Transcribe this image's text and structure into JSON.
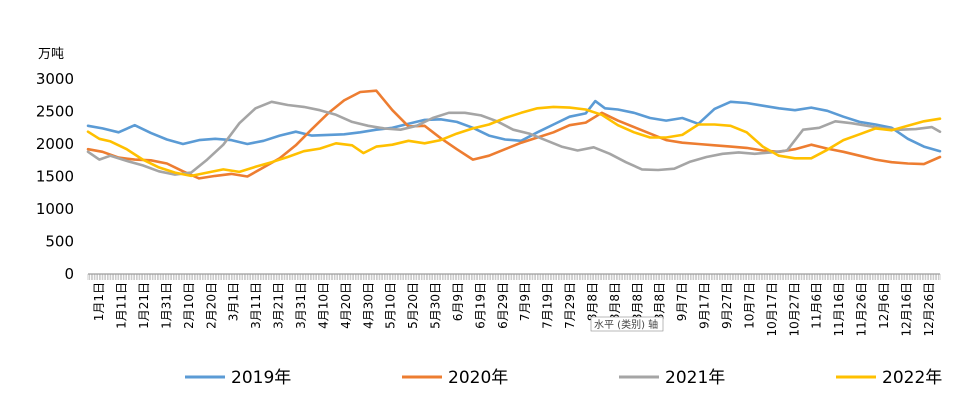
{
  "chart_data": {
    "type": "line",
    "title": "",
    "unit_label": "万吨",
    "xlabel": "",
    "ylabel": "",
    "ylim": [
      0,
      3000
    ],
    "yticks": [
      0,
      500,
      1000,
      1500,
      2000,
      2500,
      3000
    ],
    "grid": "none",
    "legend_position": "bottom",
    "axis_tooltip": "水平 (类别) 轴",
    "x_tick_labels": [
      "1月1日",
      "1月11日",
      "1月21日",
      "1月31日",
      "2月10日",
      "2月20日",
      "3月1日",
      "3月11日",
      "3月21日",
      "3月31日",
      "4月10日",
      "4月20日",
      "4月30日",
      "5月10日",
      "5月20日",
      "5月30日",
      "6月9日",
      "6月19日",
      "6月29日",
      "7月9日",
      "7月19日",
      "7月29日",
      "8月8日",
      "8月8日",
      "8月8日",
      "8月8日",
      "9月7日",
      "9月17日",
      "9月27日",
      "10月7日",
      "10月17日",
      "10月27日",
      "11月6日",
      "11月16日",
      "11月26日",
      "12月6日",
      "12月16日",
      "12月26日"
    ],
    "series": [
      {
        "name": "2019年",
        "color": "#5B9BD5",
        "points": [
          [
            1,
            2280
          ],
          [
            10,
            2240
          ],
          [
            20,
            2180
          ],
          [
            30,
            2290
          ],
          [
            40,
            2170
          ],
          [
            50,
            2070
          ],
          [
            60,
            2000
          ],
          [
            70,
            2060
          ],
          [
            80,
            2080
          ],
          [
            90,
            2060
          ],
          [
            100,
            2000
          ],
          [
            110,
            2050
          ],
          [
            120,
            2130
          ],
          [
            130,
            2190
          ],
          [
            140,
            2130
          ],
          [
            150,
            2140
          ],
          [
            160,
            2150
          ],
          [
            170,
            2180
          ],
          [
            180,
            2220
          ],
          [
            190,
            2250
          ],
          [
            200,
            2310
          ],
          [
            210,
            2370
          ],
          [
            220,
            2380
          ],
          [
            230,
            2340
          ],
          [
            240,
            2250
          ],
          [
            250,
            2130
          ],
          [
            260,
            2070
          ],
          [
            270,
            2050
          ],
          [
            280,
            2180
          ],
          [
            290,
            2300
          ],
          [
            300,
            2420
          ],
          [
            310,
            2470
          ],
          [
            316,
            2660
          ],
          [
            322,
            2550
          ],
          [
            330,
            2530
          ],
          [
            340,
            2480
          ],
          [
            350,
            2400
          ],
          [
            360,
            2360
          ],
          [
            370,
            2400
          ],
          [
            380,
            2310
          ],
          [
            390,
            2540
          ],
          [
            400,
            2650
          ],
          [
            410,
            2630
          ],
          [
            420,
            2590
          ],
          [
            430,
            2550
          ],
          [
            440,
            2520
          ],
          [
            450,
            2560
          ],
          [
            460,
            2510
          ],
          [
            470,
            2420
          ],
          [
            480,
            2340
          ],
          [
            490,
            2300
          ],
          [
            500,
            2250
          ],
          [
            510,
            2080
          ],
          [
            520,
            1960
          ],
          [
            530,
            1890
          ]
        ]
      },
      {
        "name": "2020年",
        "color": "#ED7D31",
        "points": [
          [
            1,
            1920
          ],
          [
            10,
            1880
          ],
          [
            20,
            1790
          ],
          [
            30,
            1760
          ],
          [
            40,
            1750
          ],
          [
            50,
            1700
          ],
          [
            60,
            1580
          ],
          [
            70,
            1470
          ],
          [
            80,
            1510
          ],
          [
            90,
            1540
          ],
          [
            100,
            1500
          ],
          [
            110,
            1640
          ],
          [
            120,
            1780
          ],
          [
            130,
            1980
          ],
          [
            140,
            2230
          ],
          [
            150,
            2470
          ],
          [
            160,
            2670
          ],
          [
            170,
            2800
          ],
          [
            180,
            2820
          ],
          [
            190,
            2520
          ],
          [
            200,
            2270
          ],
          [
            210,
            2280
          ],
          [
            220,
            2090
          ],
          [
            230,
            1920
          ],
          [
            240,
            1760
          ],
          [
            250,
            1820
          ],
          [
            260,
            1920
          ],
          [
            270,
            2020
          ],
          [
            280,
            2100
          ],
          [
            290,
            2180
          ],
          [
            300,
            2290
          ],
          [
            310,
            2330
          ],
          [
            320,
            2480
          ],
          [
            330,
            2360
          ],
          [
            340,
            2260
          ],
          [
            350,
            2160
          ],
          [
            360,
            2060
          ],
          [
            370,
            2020
          ],
          [
            380,
            2000
          ],
          [
            390,
            1980
          ],
          [
            400,
            1960
          ],
          [
            410,
            1940
          ],
          [
            420,
            1900
          ],
          [
            430,
            1880
          ],
          [
            440,
            1920
          ],
          [
            450,
            1990
          ],
          [
            460,
            1930
          ],
          [
            470,
            1880
          ],
          [
            480,
            1820
          ],
          [
            490,
            1760
          ],
          [
            500,
            1720
          ],
          [
            510,
            1700
          ],
          [
            520,
            1690
          ],
          [
            530,
            1800
          ]
        ]
      },
      {
        "name": "2021年",
        "color": "#A5A5A5",
        "points": [
          [
            1,
            1880
          ],
          [
            8,
            1760
          ],
          [
            15,
            1820
          ],
          [
            25,
            1740
          ],
          [
            35,
            1670
          ],
          [
            45,
            1580
          ],
          [
            55,
            1530
          ],
          [
            65,
            1560
          ],
          [
            75,
            1760
          ],
          [
            85,
            1990
          ],
          [
            95,
            2320
          ],
          [
            105,
            2550
          ],
          [
            115,
            2650
          ],
          [
            125,
            2600
          ],
          [
            135,
            2570
          ],
          [
            145,
            2520
          ],
          [
            155,
            2450
          ],
          [
            165,
            2340
          ],
          [
            175,
            2280
          ],
          [
            185,
            2240
          ],
          [
            195,
            2220
          ],
          [
            205,
            2280
          ],
          [
            215,
            2400
          ],
          [
            225,
            2480
          ],
          [
            235,
            2480
          ],
          [
            245,
            2440
          ],
          [
            255,
            2350
          ],
          [
            265,
            2220
          ],
          [
            275,
            2160
          ],
          [
            285,
            2060
          ],
          [
            295,
            1960
          ],
          [
            305,
            1900
          ],
          [
            315,
            1950
          ],
          [
            325,
            1850
          ],
          [
            335,
            1720
          ],
          [
            345,
            1610
          ],
          [
            355,
            1600
          ],
          [
            365,
            1620
          ],
          [
            375,
            1730
          ],
          [
            385,
            1800
          ],
          [
            395,
            1850
          ],
          [
            405,
            1870
          ],
          [
            415,
            1850
          ],
          [
            425,
            1870
          ],
          [
            435,
            1900
          ],
          [
            445,
            2220
          ],
          [
            455,
            2250
          ],
          [
            465,
            2350
          ],
          [
            475,
            2320
          ],
          [
            485,
            2280
          ],
          [
            495,
            2240
          ],
          [
            505,
            2220
          ],
          [
            515,
            2230
          ],
          [
            525,
            2260
          ],
          [
            530,
            2190
          ]
        ]
      },
      {
        "name": "2022年",
        "color": "#FFC000",
        "points": [
          [
            1,
            2190
          ],
          [
            8,
            2080
          ],
          [
            15,
            2040
          ],
          [
            25,
            1920
          ],
          [
            35,
            1760
          ],
          [
            45,
            1640
          ],
          [
            55,
            1560
          ],
          [
            65,
            1510
          ],
          [
            75,
            1560
          ],
          [
            85,
            1610
          ],
          [
            95,
            1570
          ],
          [
            105,
            1650
          ],
          [
            115,
            1720
          ],
          [
            125,
            1800
          ],
          [
            135,
            1890
          ],
          [
            145,
            1930
          ],
          [
            155,
            2010
          ],
          [
            165,
            1980
          ],
          [
            172,
            1860
          ],
          [
            180,
            1960
          ],
          [
            190,
            1990
          ],
          [
            200,
            2050
          ],
          [
            210,
            2010
          ],
          [
            220,
            2060
          ],
          [
            230,
            2160
          ],
          [
            240,
            2240
          ],
          [
            250,
            2300
          ],
          [
            260,
            2400
          ],
          [
            270,
            2480
          ],
          [
            280,
            2550
          ],
          [
            290,
            2570
          ],
          [
            300,
            2560
          ],
          [
            310,
            2530
          ],
          [
            320,
            2450
          ],
          [
            330,
            2290
          ],
          [
            340,
            2180
          ],
          [
            350,
            2100
          ],
          [
            360,
            2100
          ],
          [
            370,
            2140
          ],
          [
            380,
            2300
          ],
          [
            390,
            2300
          ],
          [
            400,
            2280
          ],
          [
            410,
            2180
          ],
          [
            420,
            1960
          ],
          [
            430,
            1820
          ],
          [
            440,
            1780
          ],
          [
            450,
            1780
          ],
          [
            460,
            1910
          ],
          [
            470,
            2060
          ],
          [
            480,
            2150
          ],
          [
            490,
            2240
          ],
          [
            500,
            2210
          ],
          [
            510,
            2280
          ],
          [
            520,
            2350
          ],
          [
            530,
            2390
          ]
        ]
      }
    ]
  }
}
